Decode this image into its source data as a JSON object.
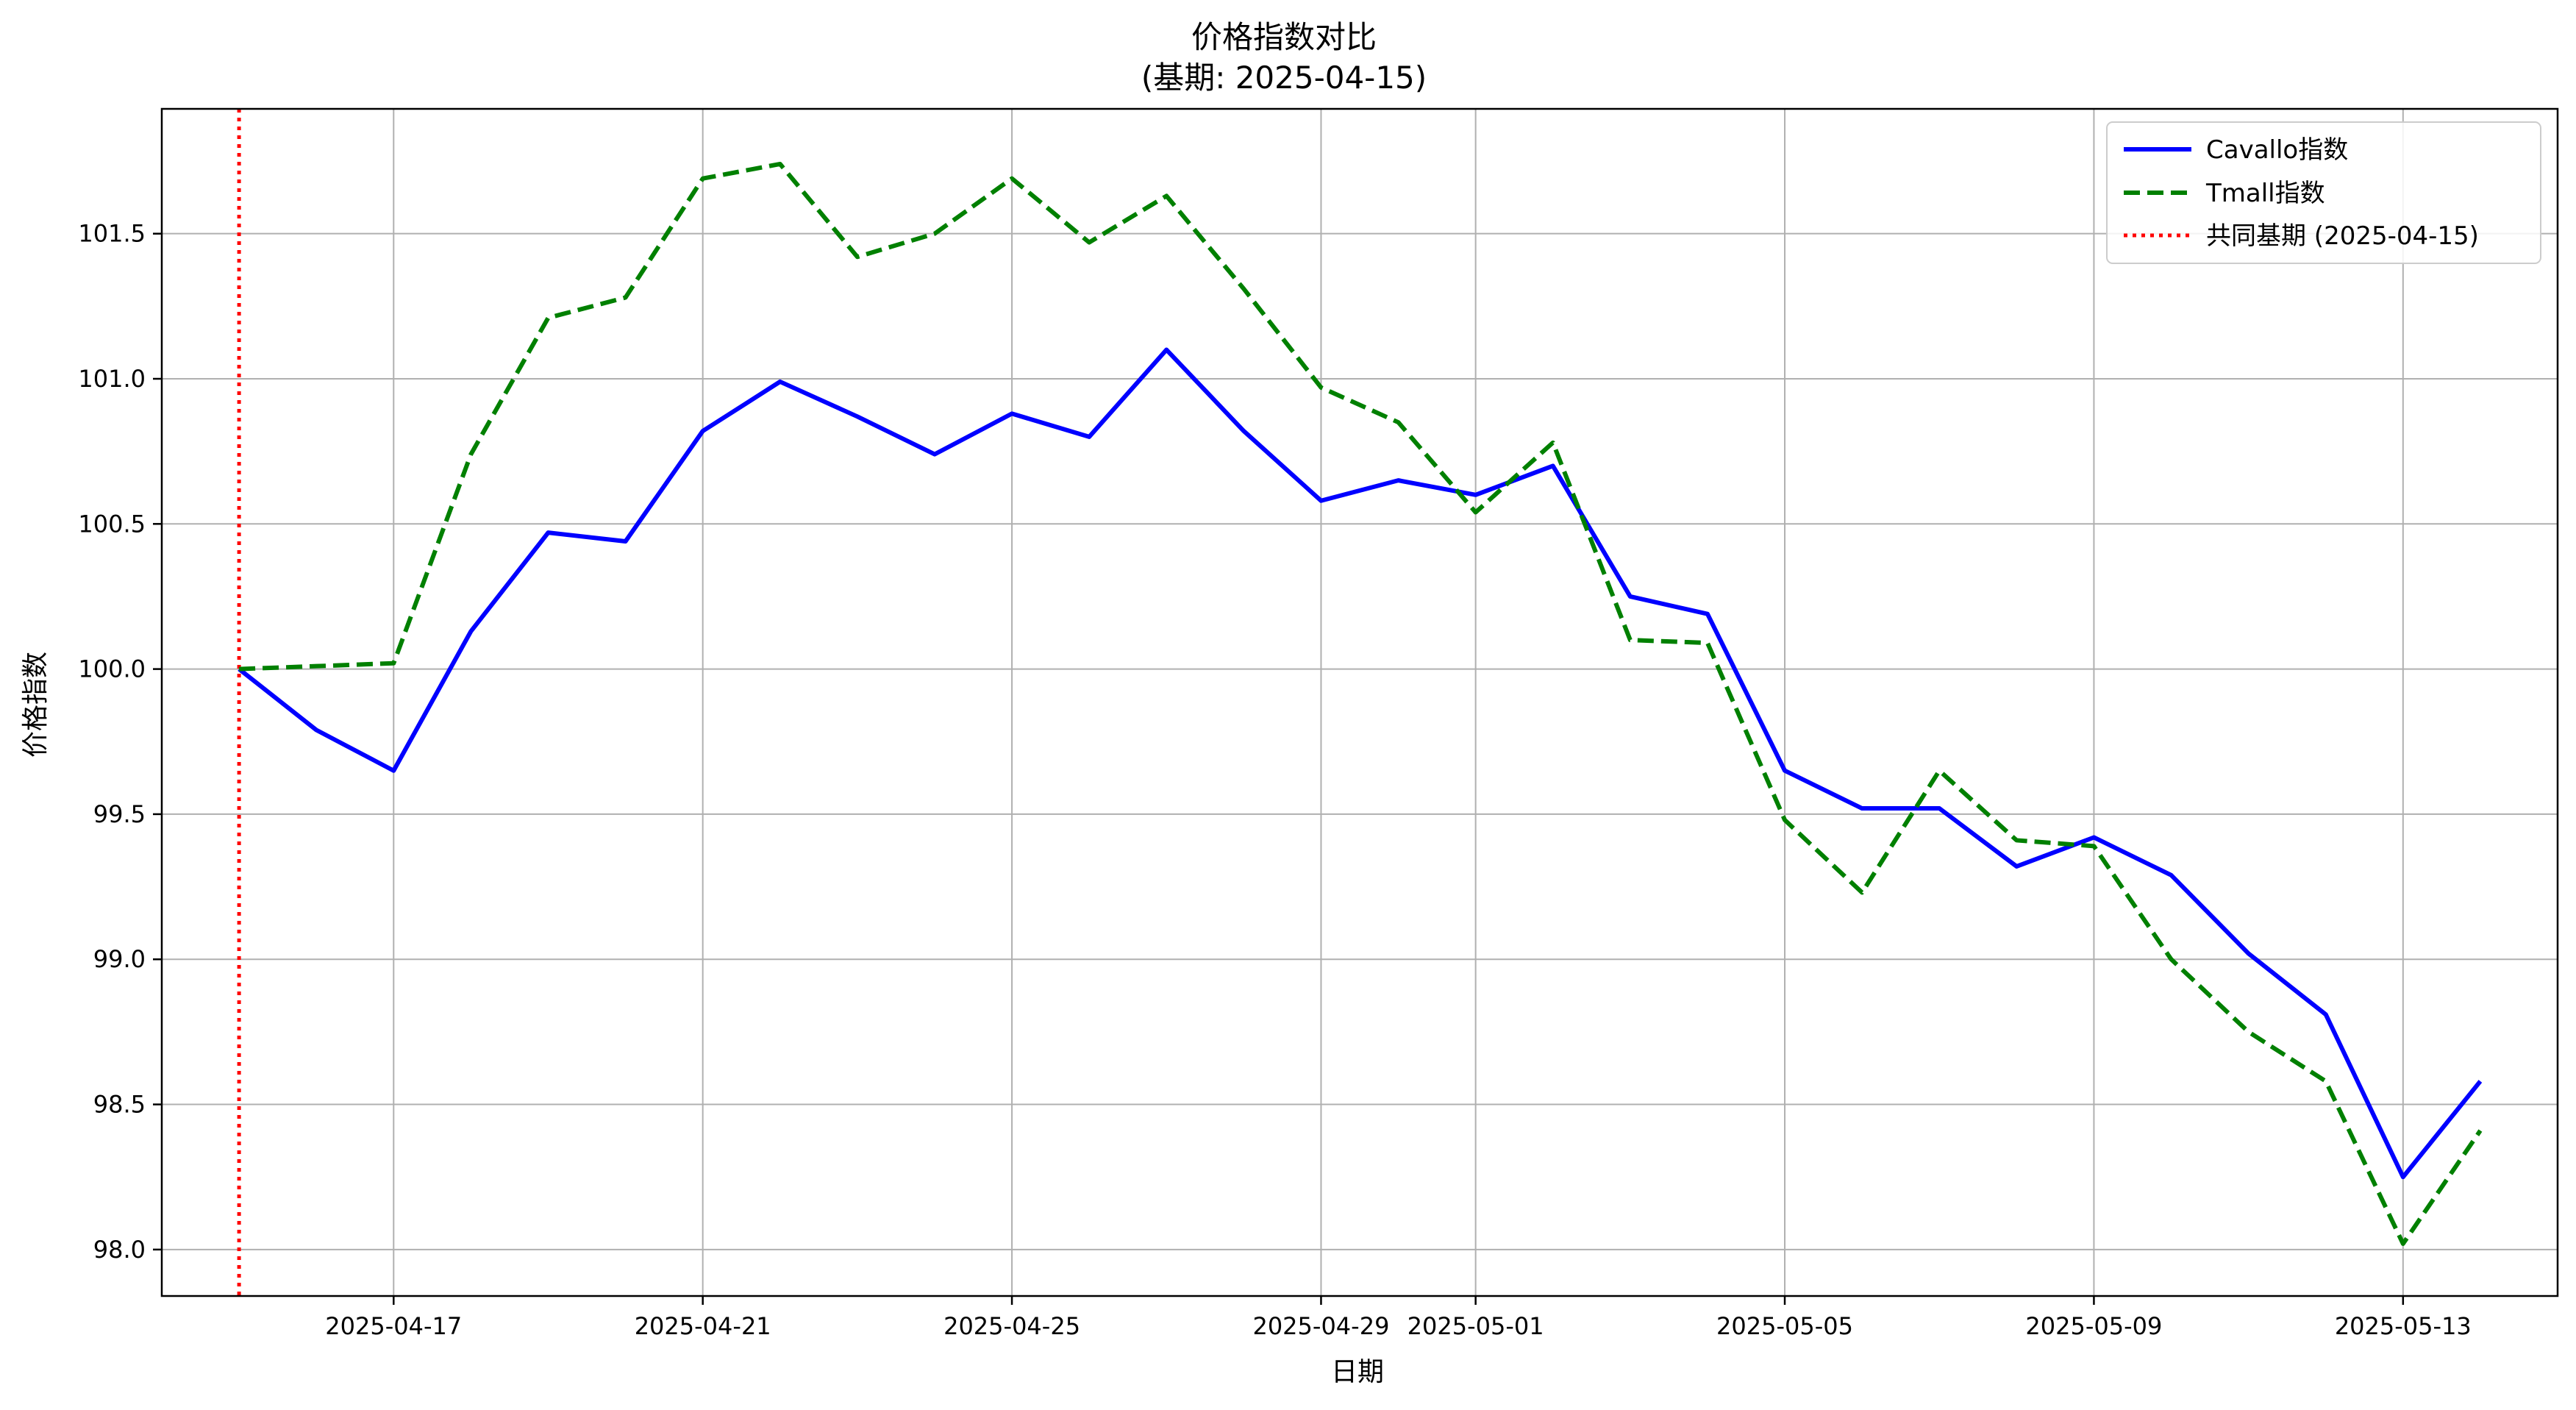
{
  "chart_data": {
    "type": "line",
    "title": "价格指数对比",
    "subtitle": "(基期: 2025-04-15)",
    "xlabel": "日期",
    "ylabel": "价格指数",
    "x_type": "date",
    "xlim": [
      "2025-04-14",
      "2025-05-15"
    ],
    "ylim": [
      97.84,
      101.93
    ],
    "x_ticks": [
      "2025-04-17",
      "2025-04-21",
      "2025-04-25",
      "2025-04-29",
      "2025-05-01",
      "2025-05-05",
      "2025-05-09",
      "2025-05-13"
    ],
    "y_ticks": [
      98.0,
      98.5,
      99.0,
      99.5,
      100.0,
      100.5,
      101.0,
      101.5
    ],
    "y_tick_labels": [
      "98.0",
      "98.5",
      "99.0",
      "99.5",
      "100.0",
      "100.5",
      "101.0",
      "101.5"
    ],
    "grid": true,
    "legend_position": "top-right",
    "dates": [
      "2025-04-15",
      "2025-04-16",
      "2025-04-17",
      "2025-04-18",
      "2025-04-19",
      "2025-04-20",
      "2025-04-21",
      "2025-04-22",
      "2025-04-23",
      "2025-04-24",
      "2025-04-25",
      "2025-04-26",
      "2025-04-27",
      "2025-04-28",
      "2025-04-29",
      "2025-04-30",
      "2025-05-01",
      "2025-05-02",
      "2025-05-03",
      "2025-05-04",
      "2025-05-05",
      "2025-05-06",
      "2025-05-07",
      "2025-05-08",
      "2025-05-09",
      "2025-05-10",
      "2025-05-11",
      "2025-05-12",
      "2025-05-13",
      "2025-05-14"
    ],
    "series": [
      {
        "name": "Cavallo指数",
        "color": "#0000ff",
        "line_style": "solid",
        "values": [
          100.0,
          99.79,
          99.65,
          100.13,
          100.47,
          100.44,
          100.82,
          100.99,
          100.87,
          100.74,
          100.88,
          100.8,
          101.1,
          100.82,
          100.58,
          100.65,
          100.6,
          100.7,
          100.25,
          100.19,
          99.65,
          99.52,
          99.52,
          99.32,
          99.42,
          99.29,
          99.02,
          98.81,
          98.25,
          98.58
        ]
      },
      {
        "name": "Tmall指数",
        "color": "#008000",
        "line_style": "dashed",
        "values": [
          100.0,
          100.01,
          100.02,
          100.74,
          101.21,
          101.28,
          101.69,
          101.74,
          101.42,
          101.5,
          101.69,
          101.47,
          101.63,
          101.31,
          100.97,
          100.85,
          100.54,
          100.78,
          100.1,
          100.09,
          99.48,
          99.23,
          99.65,
          99.41,
          99.39,
          99.0,
          98.75,
          98.58,
          98.02,
          98.41
        ]
      }
    ],
    "reference_line": {
      "name": "共同基期 (2025-04-15)",
      "date": "2025-04-15",
      "color": "#ff0000",
      "line_style": "dotted"
    }
  }
}
